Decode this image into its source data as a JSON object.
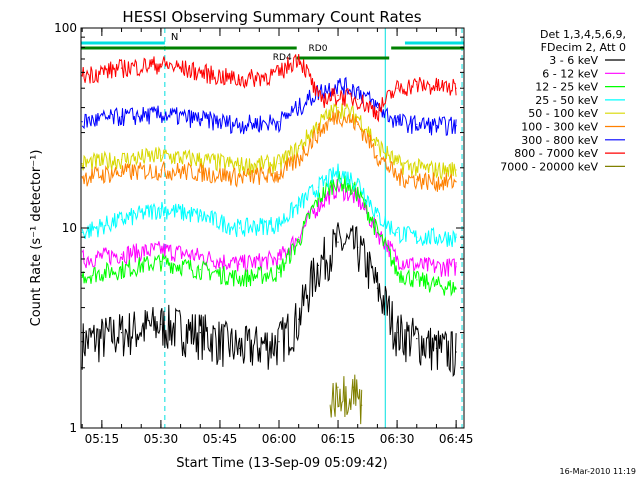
{
  "chart_data": {
    "type": "line",
    "title": "HESSI Observing Summary Count Rates",
    "xlabel": "Start Time (13-Sep-09 05:09:42)",
    "ylabel": "Count Rate (s⁻¹ detector⁻¹)",
    "yscale": "log",
    "ylim": [
      1,
      100
    ],
    "xlim": [
      "05:09:42",
      "06:47:00"
    ],
    "xticks": [
      "05:15",
      "05:30",
      "05:45",
      "06:00",
      "06:15",
      "06:30",
      "06:45"
    ],
    "yticks": [
      "1",
      "10",
      "100"
    ],
    "legend_header": [
      "Det 1,3,4,5,6,9,",
      "FDecim 2, Att 0"
    ],
    "legend_position": "right",
    "timestamp": "16-Mar-2010 11:19",
    "annotations": {
      "night": {
        "label": "N",
        "start": "05:09:42",
        "end": "05:31:00",
        "color": "#00e0e0"
      },
      "night2": {
        "start": "06:32:00",
        "end": "06:47:00",
        "color": "#00e0e0"
      },
      "saa_labels": [
        {
          "label": "RD4",
          "time": "06:03:30"
        },
        {
          "label": "RD0",
          "time": "06:07:00"
        }
      ],
      "vertical_markers": [
        {
          "time": "05:09:42",
          "style": "solid"
        },
        {
          "time": "05:31:00",
          "style": "dashed"
        },
        {
          "time": "06:27:00",
          "style": "solid"
        },
        {
          "time": "06:46:30",
          "style": "dashed"
        }
      ]
    },
    "series": [
      {
        "name": "3 - 6 keV",
        "color": "#000000",
        "x": [
          "05:10",
          "05:20",
          "05:30",
          "05:40",
          "05:50",
          "06:00",
          "06:05",
          "06:10",
          "06:15",
          "06:20",
          "06:25",
          "06:30",
          "06:35",
          "06:40",
          "06:45"
        ],
        "values": [
          2.7,
          3.0,
          3.3,
          3.0,
          2.5,
          2.7,
          3.5,
          6.5,
          8.5,
          8.0,
          5.0,
          3.0,
          2.8,
          2.5,
          2.4
        ]
      },
      {
        "name": "6 - 12 keV",
        "color": "#ff00ff",
        "x": [
          "05:10",
          "05:20",
          "05:30",
          "05:40",
          "05:50",
          "06:00",
          "06:05",
          "06:10",
          "06:15",
          "06:20",
          "06:25",
          "06:30",
          "06:35",
          "06:40",
          "06:45"
        ],
        "values": [
          7.0,
          7.4,
          7.8,
          7.2,
          6.6,
          7.0,
          9.0,
          13.0,
          16.0,
          14.0,
          9.5,
          7.0,
          6.5,
          6.4,
          6.4
        ]
      },
      {
        "name": "12 - 25 keV",
        "color": "#00ff00",
        "x": [
          "05:10",
          "05:20",
          "05:30",
          "05:40",
          "05:50",
          "06:00",
          "06:05",
          "06:10",
          "06:15",
          "06:20",
          "06:25",
          "06:30",
          "06:35",
          "06:40",
          "06:45"
        ],
        "values": [
          5.8,
          6.2,
          6.8,
          6.2,
          5.6,
          6.0,
          8.5,
          14.0,
          17.5,
          15.0,
          9.5,
          6.0,
          5.5,
          5.2,
          5.0
        ]
      },
      {
        "name": "25 - 50 keV",
        "color": "#00ffff",
        "x": [
          "05:10",
          "05:20",
          "05:30",
          "05:40",
          "05:50",
          "06:00",
          "06:05",
          "06:10",
          "06:15",
          "06:20",
          "06:25",
          "06:30",
          "06:35",
          "06:40",
          "06:45"
        ],
        "values": [
          9.5,
          11.0,
          12.5,
          11.5,
          10.0,
          10.5,
          13.0,
          16.0,
          19.0,
          17.0,
          11.5,
          9.5,
          9.0,
          9.0,
          9.0
        ]
      },
      {
        "name": "50 - 100 keV",
        "color": "#d8d800",
        "x": [
          "05:10",
          "05:20",
          "05:30",
          "05:40",
          "05:50",
          "06:00",
          "06:05",
          "06:10",
          "06:15",
          "06:20",
          "06:25",
          "06:30",
          "06:35",
          "06:40",
          "06:45"
        ],
        "values": [
          21.0,
          22.0,
          23.0,
          22.0,
          20.5,
          21.0,
          25.0,
          33.0,
          40.0,
          36.0,
          26.0,
          21.0,
          20.0,
          19.5,
          19.5
        ]
      },
      {
        "name": "100 - 300 keV",
        "color": "#ff8000",
        "x": [
          "05:10",
          "05:20",
          "05:30",
          "05:40",
          "05:50",
          "06:00",
          "06:05",
          "06:10",
          "06:15",
          "06:20",
          "06:25",
          "06:30",
          "06:35",
          "06:40",
          "06:45"
        ],
        "values": [
          18.0,
          19.0,
          19.5,
          19.0,
          18.0,
          18.5,
          22.0,
          30.0,
          37.0,
          33.0,
          23.0,
          18.0,
          17.5,
          17.0,
          17.0
        ]
      },
      {
        "name": "300 - 800 keV",
        "color": "#0000ff",
        "x": [
          "05:10",
          "05:20",
          "05:30",
          "05:40",
          "05:50",
          "06:00",
          "06:05",
          "06:10",
          "06:15",
          "06:20",
          "06:25",
          "06:30",
          "06:35",
          "06:40",
          "06:45"
        ],
        "values": [
          34.0,
          36.0,
          37.0,
          35.0,
          33.0,
          34.0,
          40.0,
          48.0,
          52.0,
          49.0,
          40.0,
          34.0,
          33.0,
          32.5,
          32.5
        ]
      },
      {
        "name": "800 - 7000 keV",
        "color": "#ff0000",
        "x": [
          "05:10",
          "05:20",
          "05:30",
          "05:40",
          "05:50",
          "06:00",
          "06:05",
          "06:10",
          "06:15",
          "06:20",
          "06:25",
          "06:30",
          "06:35",
          "06:40",
          "06:45"
        ],
        "values": [
          58.0,
          63.0,
          66.0,
          60.0,
          55.0,
          59.0,
          72.0,
          44.0,
          46.0,
          44.0,
          38.0,
          50.0,
          52.0,
          51.0,
          50.0
        ]
      },
      {
        "name": "7000 - 20000 keV",
        "color": "#808000",
        "x": [
          "06:13",
          "06:15",
          "06:17",
          "06:19",
          "06:21"
        ],
        "values": [
          1.3,
          1.6,
          1.5,
          1.6,
          1.3
        ]
      }
    ]
  }
}
